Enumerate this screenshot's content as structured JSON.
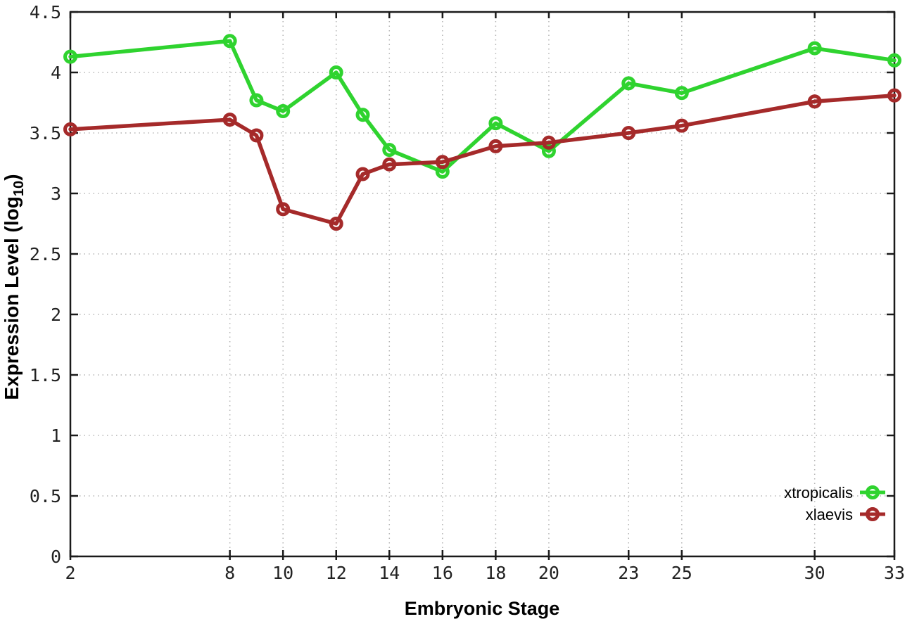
{
  "figure": {
    "background": "#ffffff",
    "xlabel": "Embryonic Stage",
    "ylabel_main": "Expression Level (log",
    "ylabel_sub": "10",
    "ylabel_close": ")",
    "border_color": "#1a1a1a",
    "grid_color": "#b4b4b4"
  },
  "chart_data": {
    "type": "line",
    "title": "",
    "xlabel": "Embryonic Stage",
    "ylabel": "Expression Level (log10)",
    "xlim": [
      2,
      33
    ],
    "ylim": [
      0,
      4.5
    ],
    "xticks": [
      2,
      8,
      10,
      12,
      14,
      16,
      18,
      20,
      23,
      25,
      30,
      33
    ],
    "xtick_labels": [
      "2",
      "8",
      "10",
      "12",
      "14",
      "16",
      "18",
      "20",
      "23",
      "25",
      "30",
      "33"
    ],
    "yticks": [
      0,
      0.5,
      1,
      1.5,
      2,
      2.5,
      3,
      3.5,
      4,
      4.5
    ],
    "ytick_labels": [
      "0",
      "0.5",
      "1",
      "1.5",
      "2",
      "2.5",
      "3",
      "3.5",
      "4",
      "4.5"
    ],
    "grid": true,
    "grid_style": "dotted",
    "legend_position": "bottom-right",
    "marker": "open-circle",
    "x": [
      2,
      8,
      9,
      10,
      12,
      13,
      14,
      16,
      18,
      20,
      23,
      25,
      30,
      33
    ],
    "series": [
      {
        "name": "xtropicalis",
        "color": "#2fd32f",
        "values": [
          4.13,
          4.26,
          3.77,
          3.68,
          4.0,
          3.65,
          3.36,
          3.18,
          3.58,
          3.35,
          3.91,
          3.83,
          4.2,
          4.1
        ]
      },
      {
        "name": "xlaevis",
        "color": "#a52a2a",
        "values": [
          3.53,
          3.61,
          3.48,
          2.87,
          2.75,
          3.16,
          3.24,
          3.26,
          3.39,
          3.42,
          3.5,
          3.56,
          3.76,
          3.81
        ]
      }
    ]
  }
}
